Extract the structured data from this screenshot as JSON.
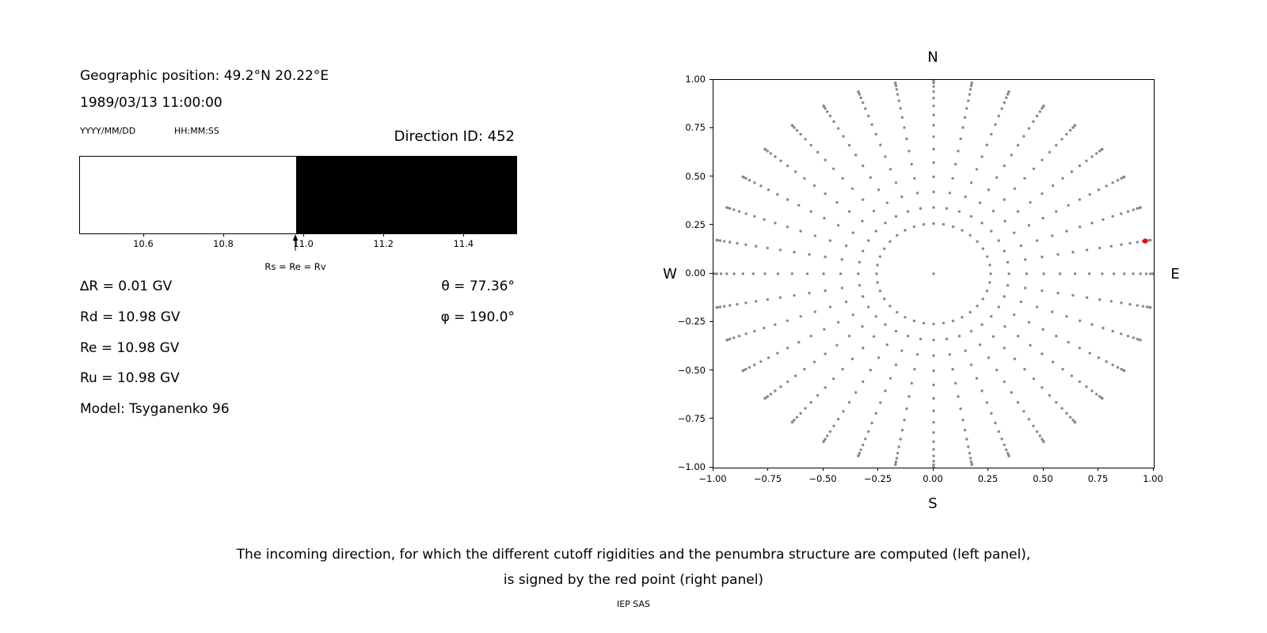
{
  "left_panel": {
    "geo_position": "Geographic position: 49.2°N 20.22°E",
    "datetime": "1989/03/13 11:00:00",
    "date_format_label": "YYYY/MM/DD",
    "time_format_label": "HH:MM:SS",
    "direction_id_label": "Direction ID: 452",
    "info_lines": [
      "∆R = 0.01 GV",
      "Rd = 10.98 GV",
      "Re = 10.98 GV",
      "Ru = 10.98 GV",
      "Model: Tsyganenko 96"
    ],
    "theta_label": "θ = 77.36°",
    "phi_label": "φ = 190.0°"
  },
  "caption": {
    "line1": "The incoming direction, for which the different cutoff rigidities and the penumbra structure are computed (left panel),",
    "line2": "is signed by the red point (right panel)",
    "credit": "IEP SAS"
  },
  "chart_data": [
    {
      "type": "bar",
      "name": "penumbra-structure",
      "description": "Cutoff rigidity penumbra: white = allowed below Rs, black = forbidden above Rs",
      "x_range": [
        10.44,
        11.53
      ],
      "tick_values": [
        10.6,
        10.8,
        11.0,
        11.2,
        11.4
      ],
      "tick_labels": [
        "10.6",
        "10.8",
        "11.0",
        "11.2",
        "11.4"
      ],
      "segments": [
        {
          "from": 10.44,
          "to": 10.98,
          "color": "#ffffff",
          "meaning": "allowed"
        },
        {
          "from": 10.98,
          "to": 11.53,
          "color": "#000000",
          "meaning": "forbidden"
        }
      ],
      "marker": {
        "x": 10.98,
        "label": "Rs = Re = Rv"
      }
    },
    {
      "type": "scatter",
      "name": "incoming-direction-map",
      "description": "Polar grid of incoming directions; red point marks selected direction ID 452",
      "xlim": [
        -1,
        1
      ],
      "ylim": [
        -1,
        1
      ],
      "xtick_values": [
        -1,
        -0.75,
        -0.5,
        -0.25,
        0,
        0.25,
        0.5,
        0.75,
        1
      ],
      "xtick_labels": [
        "−1.00",
        "−0.75",
        "−0.50",
        "−0.25",
        "0.00",
        "0.25",
        "0.50",
        "0.75",
        "1.00"
      ],
      "ytick_values": [
        1,
        0.75,
        0.5,
        0.25,
        0,
        -0.25,
        -0.5,
        -0.75,
        -1
      ],
      "ytick_labels": [
        "1.00",
        "0.75",
        "0.50",
        "0.25",
        "0.00",
        "−0.25",
        "−0.50",
        "−0.75",
        "−1.00"
      ],
      "compass": {
        "top": "N",
        "bottom": "S",
        "left": "W",
        "right": "E"
      },
      "dot_color": "#8a8a8a",
      "grid": {
        "azimuth_count": 36,
        "azimuth_step_deg": 10,
        "zenith_start_deg": 15,
        "zenith_step_deg": 5,
        "zenith_end_deg": 90,
        "radius_mapping": "sin(zenith)"
      },
      "includes_center_point": true,
      "red_point": {
        "x": 0.961,
        "y": 0.169,
        "color": "#ff0000",
        "theta_deg": 77.36,
        "phi_deg": 190.0
      }
    }
  ]
}
